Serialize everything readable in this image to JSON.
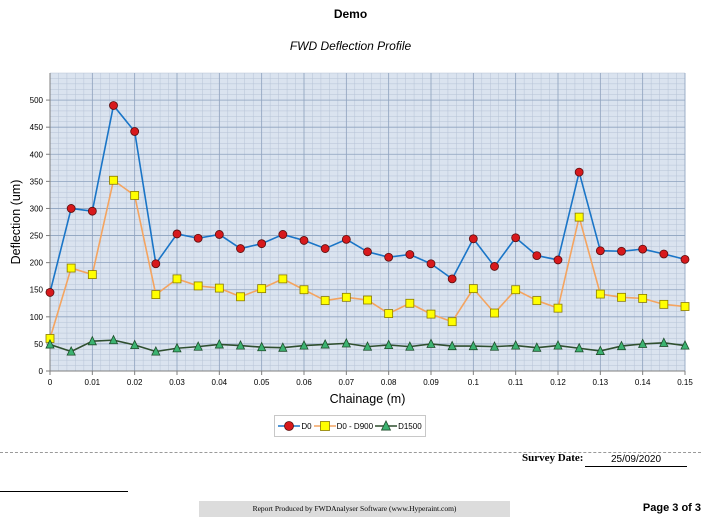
{
  "report": {
    "title": "Demo",
    "survey_date_label": "Survey Date:",
    "survey_date_value": "25/09/2020",
    "produced_by": "Report Produced by FWDAnalyser Software (www.Hyperaint.com)",
    "page": "Page 3 of 3"
  },
  "chart_data": {
    "type": "line",
    "title": "FWD Deflection Profile",
    "xlabel": "Chainage (m)",
    "ylabel": "Deflection (um)",
    "xlim": [
      0,
      0.15
    ],
    "ylim": [
      0,
      550
    ],
    "xticks": [
      0,
      0.01,
      0.02,
      0.03,
      0.04,
      0.05,
      0.06,
      0.07,
      0.08,
      0.09,
      0.1,
      0.11,
      0.12,
      0.13,
      0.14,
      0.15
    ],
    "yticks": [
      0,
      50,
      100,
      150,
      200,
      250,
      300,
      350,
      400,
      450,
      500
    ],
    "grid": true,
    "legend_position": "bottom-center",
    "x": [
      0,
      0.005,
      0.01,
      0.015,
      0.02,
      0.025,
      0.03,
      0.035,
      0.04,
      0.045,
      0.05,
      0.055,
      0.06,
      0.065,
      0.07,
      0.075,
      0.08,
      0.085,
      0.09,
      0.095,
      0.1,
      0.105,
      0.11,
      0.115,
      0.12,
      0.125,
      0.13,
      0.135,
      0.14,
      0.145,
      0.15
    ],
    "series": [
      {
        "name": "D0",
        "color": "#1a75c7",
        "marker": "circle",
        "marker_color": "#d7191c",
        "values": [
          145,
          300,
          295,
          490,
          442,
          198,
          253,
          245,
          252,
          226,
          235,
          252,
          241,
          226,
          243,
          220,
          210,
          215,
          198,
          170,
          244,
          193,
          246,
          213,
          205,
          367,
          222,
          221,
          225,
          216,
          206
        ]
      },
      {
        "name": "D0 - D900",
        "color": "#f4a460",
        "marker": "square",
        "marker_color": "#ffff00",
        "values": [
          60,
          190,
          178,
          352,
          324,
          141,
          170,
          157,
          153,
          137,
          152,
          170,
          150,
          130,
          136,
          131,
          106,
          125,
          105,
          91,
          152,
          107,
          150,
          130,
          116,
          284,
          142,
          136,
          134,
          123,
          119
        ]
      },
      {
        "name": "D1500",
        "color": "#2f4f2f",
        "marker": "triangle",
        "marker_color": "#3cb371",
        "values": [
          49,
          36,
          55,
          57,
          48,
          36,
          42,
          45,
          49,
          47,
          44,
          43,
          47,
          49,
          51,
          45,
          48,
          45,
          50,
          46,
          46,
          45,
          47,
          43,
          47,
          42,
          37,
          46,
          50,
          52,
          47
        ]
      }
    ]
  }
}
